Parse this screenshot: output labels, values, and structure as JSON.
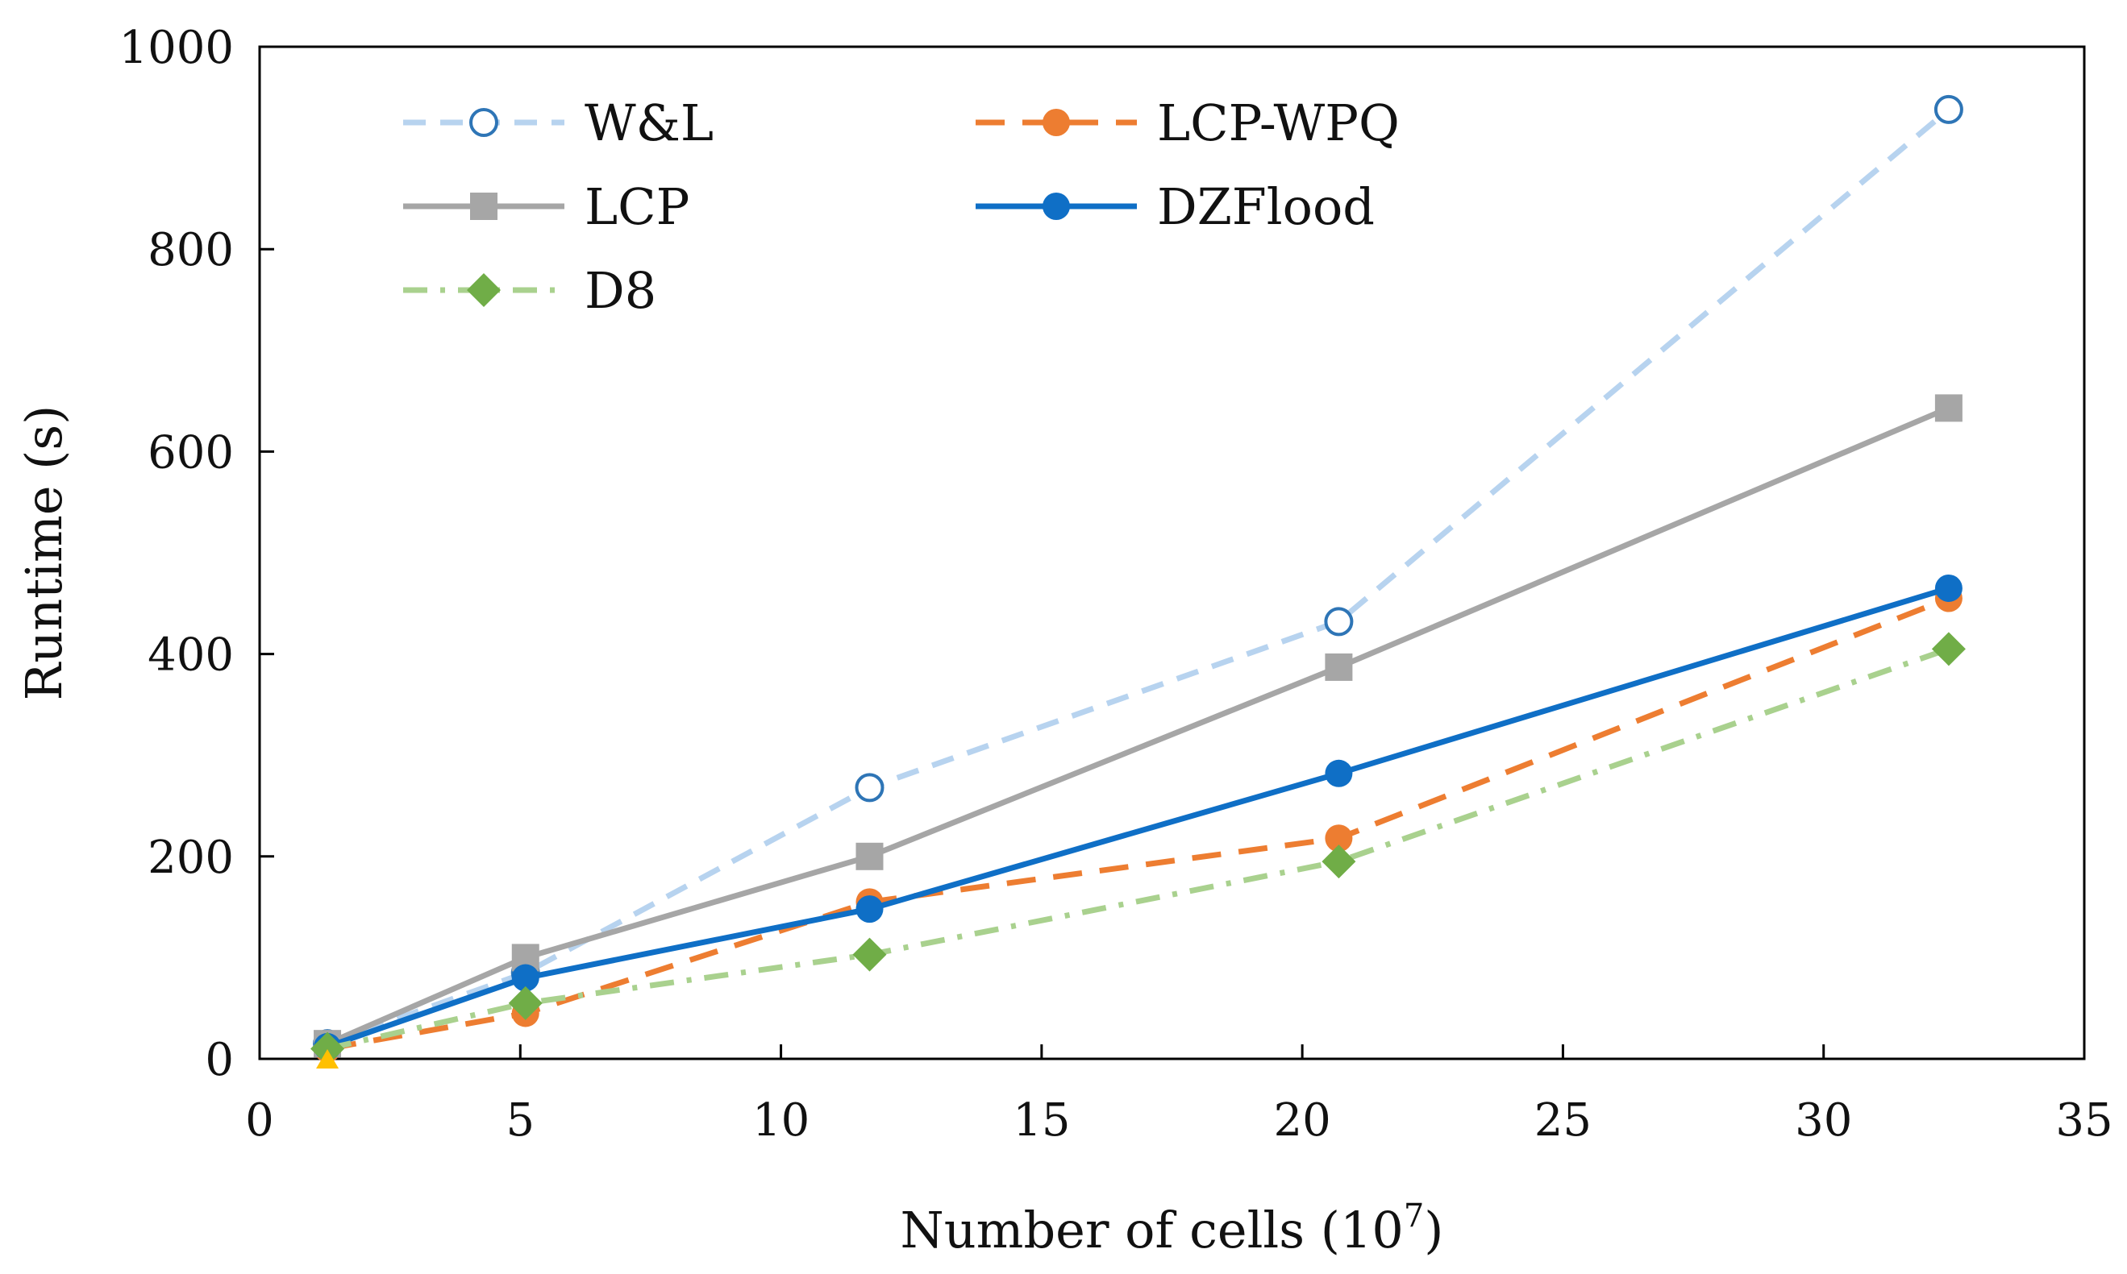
{
  "chart_data": {
    "type": "line",
    "title": "",
    "xlabel": "Number of cells (10",
    "xlabel_sup": "7",
    "xlabel_close": ")",
    "ylabel": "Runtime (s)",
    "xlim": [
      0,
      35
    ],
    "ylim": [
      0,
      1000
    ],
    "xticks": [
      0,
      5,
      10,
      15,
      20,
      25,
      30,
      35
    ],
    "yticks": [
      0,
      200,
      400,
      600,
      800,
      1000
    ],
    "x": [
      1.3,
      5.1,
      11.7,
      20.7,
      32.4
    ],
    "series": [
      {
        "name": "W&L",
        "values": [
          15,
          85,
          268,
          432,
          938
        ],
        "color": "#b7d3ef",
        "marker_color": "#2e75b6",
        "marker": "circle-open",
        "dash": "28,18"
      },
      {
        "name": "LCP-WPQ",
        "values": [
          10,
          45,
          155,
          218,
          455
        ],
        "color": "#ed7d31",
        "marker_color": "#ed7d31",
        "marker": "circle",
        "dash": "36,22"
      },
      {
        "name": "LCP",
        "values": [
          15,
          100,
          200,
          387,
          643
        ],
        "color": "#a6a6a6",
        "marker_color": "#a6a6a6",
        "marker": "square",
        "dash": ""
      },
      {
        "name": "DZFlood",
        "values": [
          12,
          80,
          148,
          282,
          465
        ],
        "color": "#0f6fc6",
        "marker_color": "#0f6fc6",
        "marker": "circle",
        "dash": ""
      },
      {
        "name": "D8",
        "values": [
          10,
          55,
          103,
          195,
          405
        ],
        "color": "#a9d18e",
        "marker_color": "#70ad47",
        "marker": "diamond",
        "dash": "30,16,6,16"
      }
    ],
    "legend_position": "top-left",
    "grid": false
  }
}
